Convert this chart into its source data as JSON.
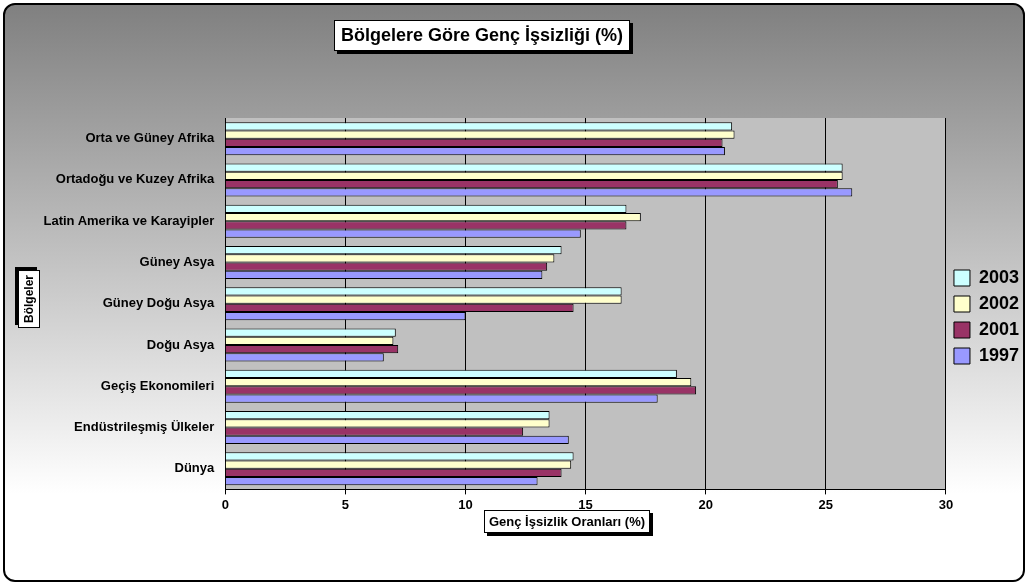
{
  "chart_data": {
    "type": "bar",
    "orientation": "horizontal",
    "title": "Bölgelere Göre Genç İşsizliği (%)",
    "xlabel": "Genç İşsizlik Oranları (%)",
    "ylabel": "Bölgeler",
    "categories": [
      "Orta ve Güney Afrika",
      "Ortadoğu ve Kuzey Afrika",
      "Latin Amerika ve Karayipler",
      "Güney Asya",
      "Güney Doğu Asya",
      "Doğu Asya",
      "Geçiş Ekonomileri",
      "Endüstrileşmiş Ülkeler",
      "Dünya"
    ],
    "series": [
      {
        "name": "2003",
        "color": "#ccffff",
        "values": [
          21.1,
          25.7,
          16.7,
          14.0,
          16.5,
          7.1,
          18.8,
          13.5,
          14.5
        ]
      },
      {
        "name": "2002",
        "color": "#ffffcc",
        "values": [
          21.2,
          25.7,
          17.3,
          13.7,
          16.5,
          7.0,
          19.4,
          13.5,
          14.4
        ]
      },
      {
        "name": "2001",
        "color": "#993366",
        "values": [
          20.7,
          25.5,
          16.7,
          13.4,
          14.5,
          7.2,
          19.6,
          12.4,
          14.0
        ]
      },
      {
        "name": "1997",
        "color": "#9999ff",
        "values": [
          20.8,
          26.1,
          14.8,
          13.2,
          10.0,
          6.6,
          18.0,
          14.3,
          13.0
        ]
      }
    ],
    "xlim": [
      0,
      30
    ],
    "xticks": [
      0,
      5,
      10,
      15,
      20,
      25,
      30
    ],
    "grid": "x",
    "legend": "right"
  }
}
